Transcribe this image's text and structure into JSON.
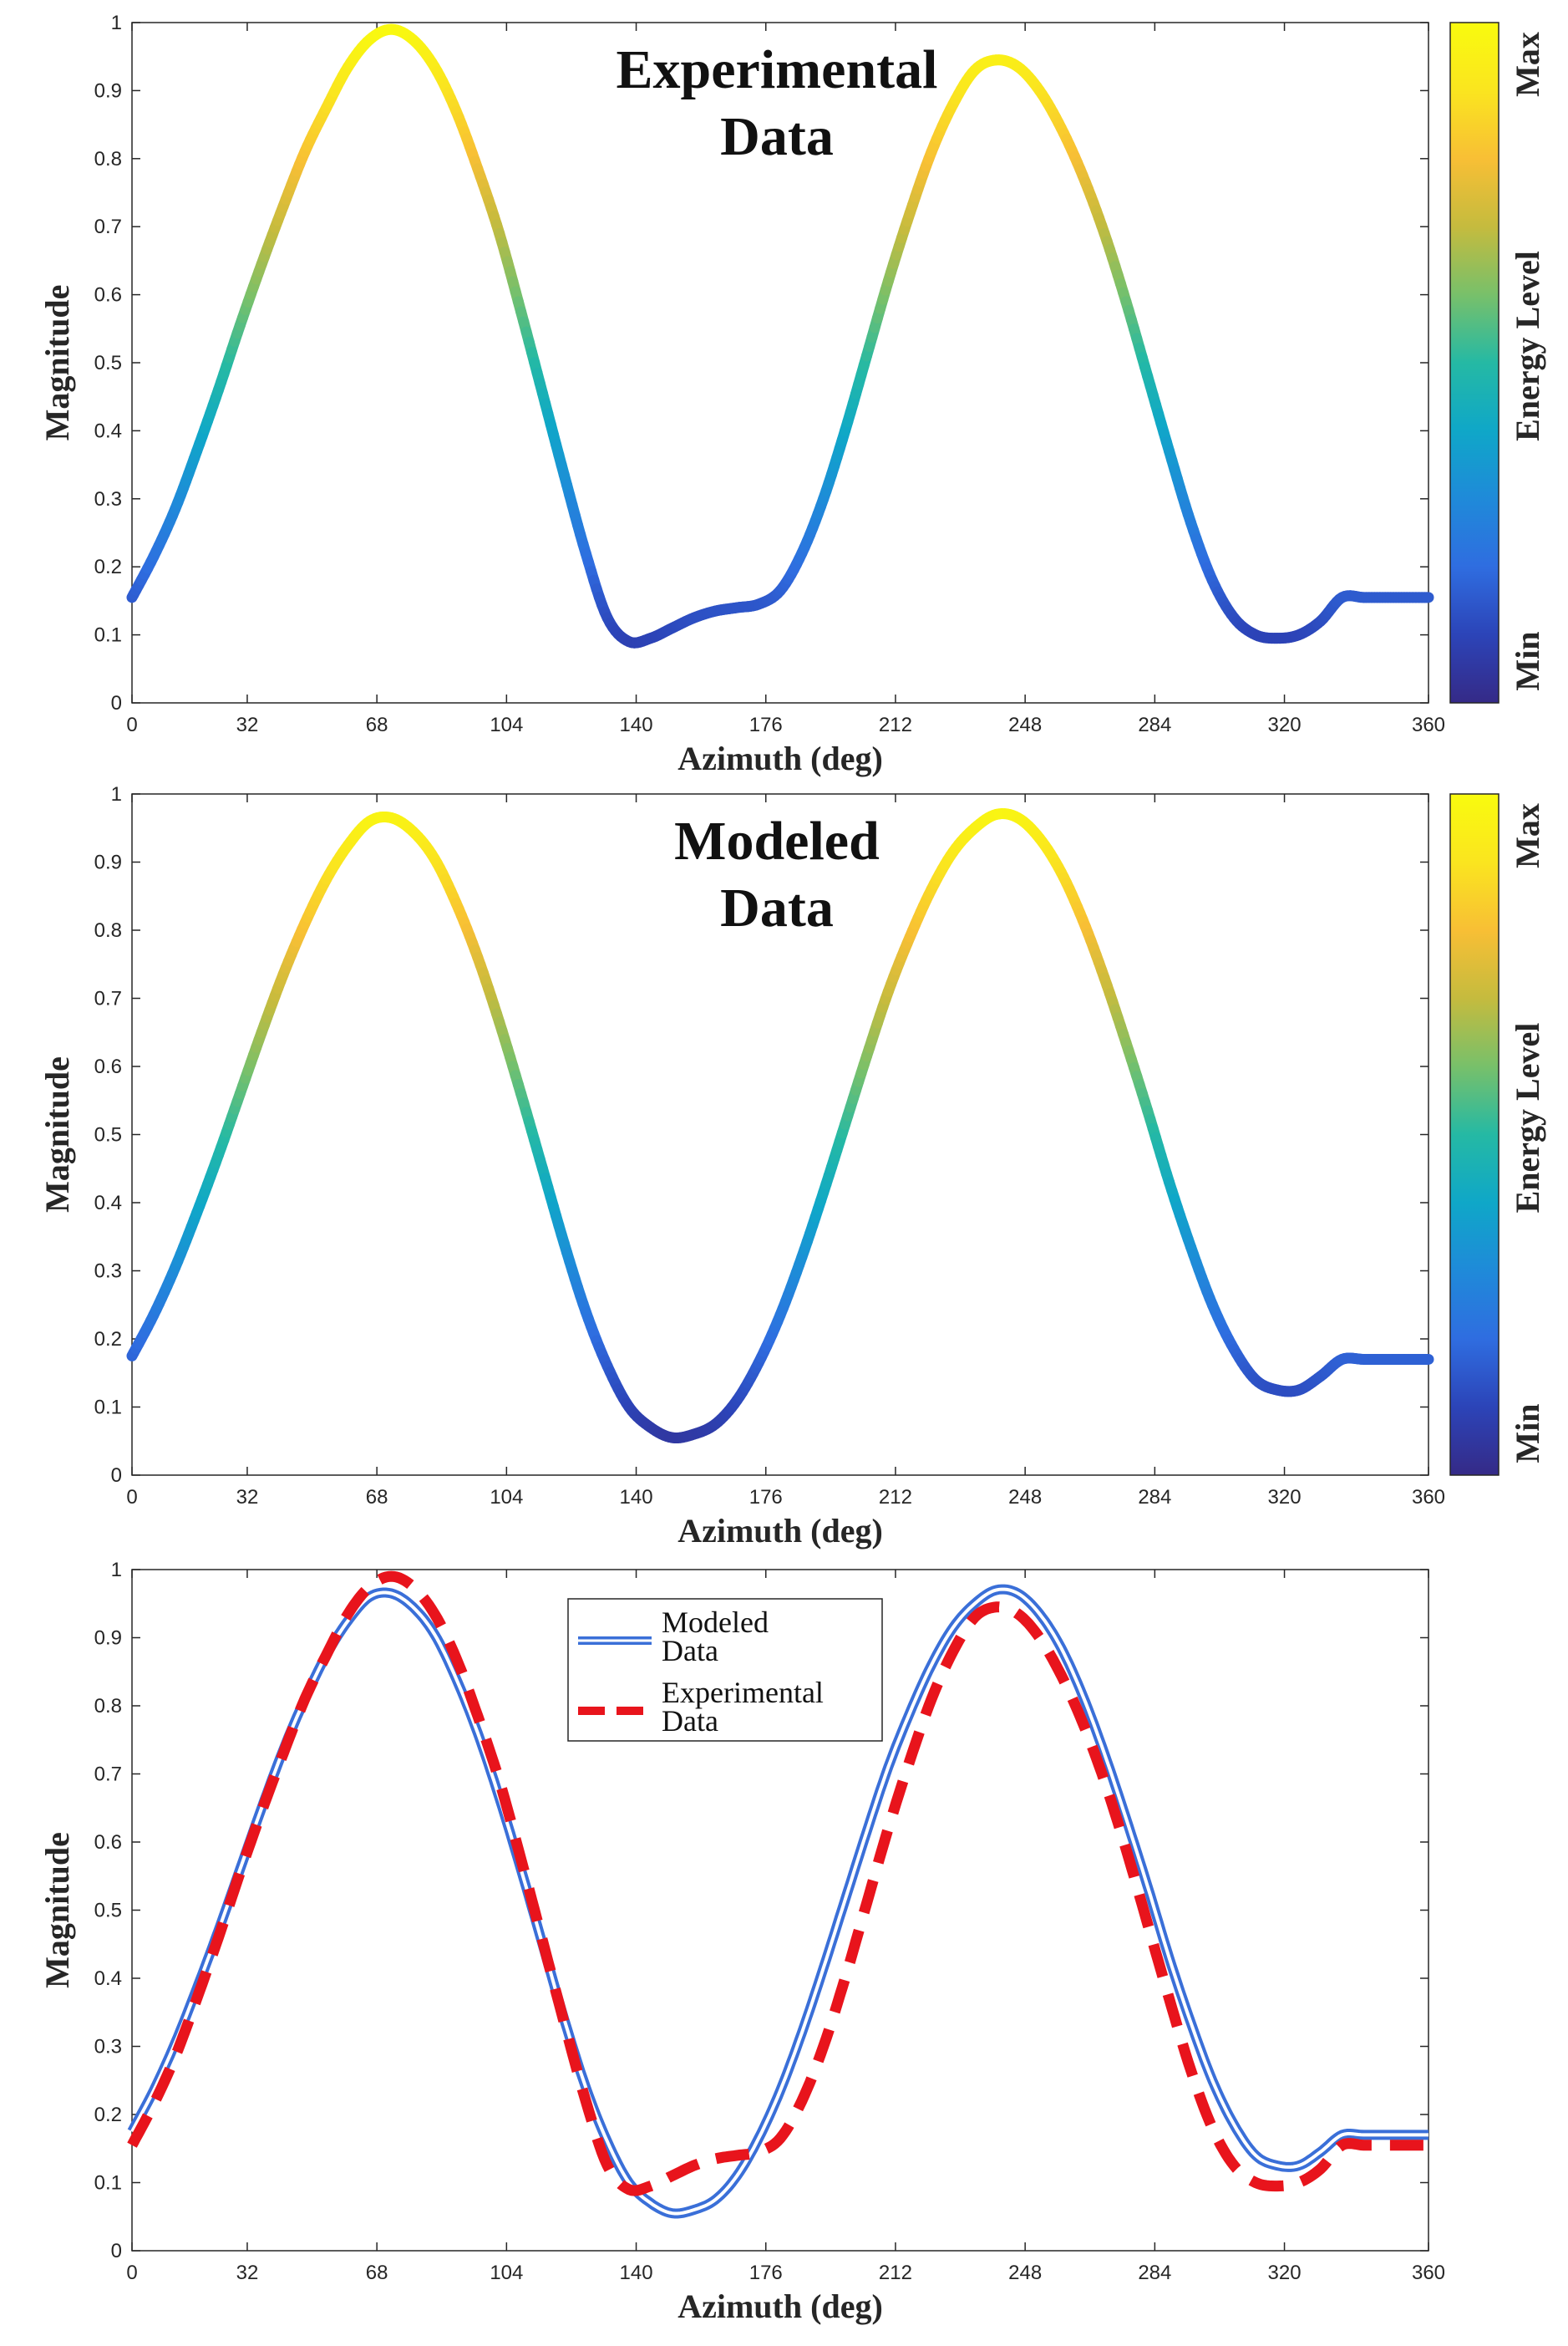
{
  "chart_data": [
    {
      "type": "line",
      "title": "Experimental\nData",
      "xlabel": "Azimuth (deg)",
      "ylabel": "Magnitude",
      "xlim": [
        0,
        360
      ],
      "ylim": [
        0,
        1
      ],
      "xticks": [
        0,
        32,
        68,
        104,
        140,
        176,
        212,
        248,
        284,
        320,
        360
      ],
      "yticks": [
        0,
        0.1,
        0.2,
        0.3,
        0.4,
        0.5,
        0.6,
        0.7,
        0.8,
        0.9,
        1
      ],
      "grid": false,
      "colorbar": {
        "label": "Energy Level",
        "min_label": "Min",
        "max_label": "Max",
        "colormap": "parula"
      },
      "series": [
        {
          "style": "colormapped-line",
          "x": [
            0,
            6,
            12,
            18,
            24,
            30,
            36,
            42,
            48,
            54,
            60,
            66,
            72,
            78,
            84,
            90,
            96,
            102,
            108,
            114,
            120,
            126,
            132,
            138,
            144,
            150,
            156,
            162,
            168,
            174,
            180,
            186,
            192,
            198,
            204,
            210,
            216,
            222,
            228,
            234,
            240,
            246,
            252,
            258,
            264,
            270,
            276,
            282,
            288,
            294,
            300,
            306,
            312,
            318,
            324,
            330,
            336,
            342,
            348,
            354,
            360
          ],
          "y": [
            0.155,
            0.215,
            0.285,
            0.37,
            0.46,
            0.555,
            0.645,
            0.73,
            0.81,
            0.875,
            0.935,
            0.975,
            0.99,
            0.975,
            0.935,
            0.87,
            0.785,
            0.69,
            0.575,
            0.455,
            0.335,
            0.22,
            0.125,
            0.09,
            0.095,
            0.11,
            0.125,
            0.135,
            0.14,
            0.145,
            0.165,
            0.22,
            0.3,
            0.4,
            0.51,
            0.62,
            0.72,
            0.81,
            0.88,
            0.93,
            0.945,
            0.935,
            0.9,
            0.845,
            0.775,
            0.69,
            0.59,
            0.48,
            0.37,
            0.265,
            0.18,
            0.125,
            0.1,
            0.095,
            0.1,
            0.12,
            0.155,
            0.155,
            0.155,
            0.155,
            0.155
          ]
        }
      ]
    },
    {
      "type": "line",
      "title": "Modeled\nData",
      "xlabel": "Azimuth (deg)",
      "ylabel": "Magnitude",
      "xlim": [
        0,
        360
      ],
      "ylim": [
        0,
        1
      ],
      "xticks": [
        0,
        32,
        68,
        104,
        140,
        176,
        212,
        248,
        284,
        320,
        360
      ],
      "yticks": [
        0,
        0.1,
        0.2,
        0.3,
        0.4,
        0.5,
        0.6,
        0.7,
        0.8,
        0.9,
        1
      ],
      "grid": false,
      "colorbar": {
        "label": "Energy Level",
        "min_label": "Min",
        "max_label": "Max",
        "colormap": "parula"
      },
      "series": [
        {
          "style": "colormapped-line",
          "x": [
            0,
            6,
            12,
            18,
            24,
            30,
            36,
            42,
            48,
            54,
            60,
            66,
            72,
            78,
            84,
            90,
            96,
            102,
            108,
            114,
            120,
            126,
            132,
            138,
            144,
            150,
            156,
            162,
            168,
            174,
            180,
            186,
            192,
            198,
            204,
            210,
            216,
            222,
            228,
            234,
            240,
            246,
            252,
            258,
            264,
            270,
            276,
            282,
            288,
            294,
            300,
            306,
            312,
            318,
            324,
            330,
            336,
            342,
            348,
            354,
            360
          ],
          "y": [
            0.175,
            0.235,
            0.305,
            0.385,
            0.47,
            0.56,
            0.65,
            0.735,
            0.81,
            0.875,
            0.925,
            0.96,
            0.965,
            0.945,
            0.905,
            0.84,
            0.76,
            0.665,
            0.56,
            0.45,
            0.34,
            0.24,
            0.16,
            0.1,
            0.07,
            0.055,
            0.06,
            0.075,
            0.11,
            0.165,
            0.235,
            0.32,
            0.415,
            0.515,
            0.615,
            0.71,
            0.79,
            0.86,
            0.915,
            0.95,
            0.97,
            0.965,
            0.935,
            0.885,
            0.815,
            0.73,
            0.635,
            0.535,
            0.43,
            0.335,
            0.25,
            0.185,
            0.14,
            0.125,
            0.125,
            0.145,
            0.17,
            0.17,
            0.17,
            0.17,
            0.17
          ]
        }
      ]
    },
    {
      "type": "line",
      "title": "",
      "xlabel": "Azimuth (deg)",
      "ylabel": "Magnitude",
      "xlim": [
        0,
        360
      ],
      "ylim": [
        0,
        1
      ],
      "xticks": [
        0,
        32,
        68,
        104,
        140,
        176,
        212,
        248,
        284,
        320,
        360
      ],
      "yticks": [
        0,
        0.1,
        0.2,
        0.3,
        0.4,
        0.5,
        0.6,
        0.7,
        0.8,
        0.9,
        1
      ],
      "grid": false,
      "legend": {
        "placement": "top-center"
      },
      "series": [
        {
          "name": "Modeled\nData",
          "style": "double-line",
          "color": "#3a6fd8",
          "x": [
            0,
            6,
            12,
            18,
            24,
            30,
            36,
            42,
            48,
            54,
            60,
            66,
            72,
            78,
            84,
            90,
            96,
            102,
            108,
            114,
            120,
            126,
            132,
            138,
            144,
            150,
            156,
            162,
            168,
            174,
            180,
            186,
            192,
            198,
            204,
            210,
            216,
            222,
            228,
            234,
            240,
            246,
            252,
            258,
            264,
            270,
            276,
            282,
            288,
            294,
            300,
            306,
            312,
            318,
            324,
            330,
            336,
            342,
            348,
            354,
            360
          ],
          "y": [
            0.175,
            0.235,
            0.305,
            0.385,
            0.47,
            0.56,
            0.65,
            0.735,
            0.81,
            0.875,
            0.925,
            0.96,
            0.965,
            0.945,
            0.905,
            0.84,
            0.76,
            0.665,
            0.56,
            0.45,
            0.34,
            0.24,
            0.16,
            0.1,
            0.07,
            0.055,
            0.06,
            0.075,
            0.11,
            0.165,
            0.235,
            0.32,
            0.415,
            0.515,
            0.615,
            0.71,
            0.79,
            0.86,
            0.915,
            0.95,
            0.97,
            0.965,
            0.935,
            0.885,
            0.815,
            0.73,
            0.635,
            0.535,
            0.43,
            0.335,
            0.25,
            0.185,
            0.14,
            0.125,
            0.125,
            0.145,
            0.17,
            0.17,
            0.17,
            0.17,
            0.17
          ]
        },
        {
          "name": "Experimental\nData",
          "style": "dashed",
          "color": "#e8141c",
          "x": [
            0,
            6,
            12,
            18,
            24,
            30,
            36,
            42,
            48,
            54,
            60,
            66,
            72,
            78,
            84,
            90,
            96,
            102,
            108,
            114,
            120,
            126,
            132,
            138,
            144,
            150,
            156,
            162,
            168,
            174,
            180,
            186,
            192,
            198,
            204,
            210,
            216,
            222,
            228,
            234,
            240,
            246,
            252,
            258,
            264,
            270,
            276,
            282,
            288,
            294,
            300,
            306,
            312,
            318,
            324,
            330,
            336,
            342,
            348,
            354,
            360
          ],
          "y": [
            0.155,
            0.215,
            0.285,
            0.37,
            0.46,
            0.555,
            0.645,
            0.73,
            0.81,
            0.875,
            0.935,
            0.975,
            0.99,
            0.975,
            0.935,
            0.87,
            0.785,
            0.69,
            0.575,
            0.455,
            0.335,
            0.22,
            0.125,
            0.09,
            0.095,
            0.11,
            0.125,
            0.135,
            0.14,
            0.145,
            0.165,
            0.22,
            0.3,
            0.4,
            0.51,
            0.62,
            0.72,
            0.81,
            0.88,
            0.93,
            0.945,
            0.935,
            0.9,
            0.845,
            0.775,
            0.69,
            0.59,
            0.48,
            0.37,
            0.265,
            0.18,
            0.125,
            0.1,
            0.095,
            0.1,
            0.12,
            0.155,
            0.155,
            0.155,
            0.155,
            0.155
          ]
        }
      ]
    }
  ],
  "colors": {
    "axis": "#262626",
    "modeled_line": "#3a6fd8",
    "experimental_line": "#e8141c",
    "parula": [
      "#352a87",
      "#2c44b8",
      "#2f6de0",
      "#1f8ad9",
      "#0fa7c8",
      "#25b9a4",
      "#78c06a",
      "#c5bb3e",
      "#f8bf35",
      "#fae51f",
      "#f9fb0e"
    ]
  }
}
